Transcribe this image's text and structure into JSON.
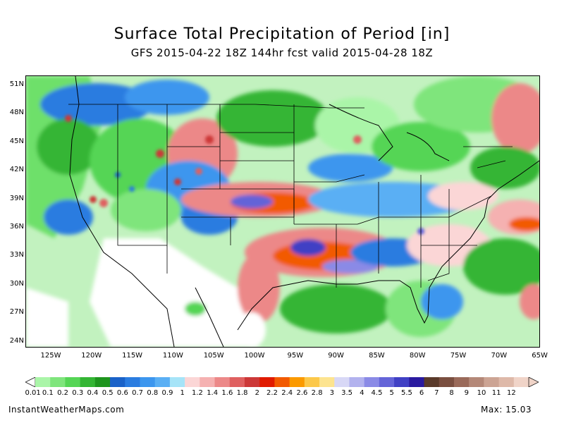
{
  "title": "Surface Total Precipitation of Period [in]",
  "subtitle": "GFS 2015-04-22 18Z 144hr fcst valid 2015-04-28 18Z",
  "map": {
    "lat_labels": [
      "51N",
      "48N",
      "45N",
      "42N",
      "39N",
      "36N",
      "33N",
      "30N",
      "27N",
      "24N"
    ],
    "lon_labels": [
      "125W",
      "120W",
      "115W",
      "110W",
      "105W",
      "100W",
      "95W",
      "90W",
      "85W",
      "80W",
      "75W",
      "70W",
      "65W"
    ],
    "lat_range": [
      23,
      52
    ],
    "lon_range": [
      -128,
      -65
    ]
  },
  "legend": {
    "labels": [
      "0.01",
      "0.1",
      "0.2",
      "0.3",
      "0.4",
      "0.5",
      "0.6",
      "0.7",
      "0.8",
      "0.9",
      "1",
      "1.2",
      "1.4",
      "1.6",
      "1.8",
      "2",
      "2.2",
      "2.4",
      "2.6",
      "2.8",
      "3",
      "3.5",
      "4",
      "4.5",
      "5",
      "5.5",
      "6",
      "7",
      "8",
      "9",
      "10",
      "11",
      "12"
    ],
    "colors": [
      "#aaf5a8",
      "#7fe57c",
      "#55d555",
      "#34b534",
      "#1e951e",
      "#1a62c8",
      "#2a7ce0",
      "#3c96ee",
      "#5aaff4",
      "#a6e4f8",
      "#fbd6d6",
      "#f5b1b1",
      "#ec8888",
      "#df6060",
      "#cc3838",
      "#e01a00",
      "#f25a00",
      "#fb9a00",
      "#fcc84a",
      "#fde490",
      "#d8d8f6",
      "#b2b2ee",
      "#8a8ae6",
      "#6464d8",
      "#4040c4",
      "#2a1aa0",
      "#5a3a2a",
      "#7a4f40",
      "#9a6a5a",
      "#b48878",
      "#cca494",
      "#deb9a9",
      "#f0d4c8"
    ]
  },
  "footer": {
    "source": "InstantWeatherMaps.com",
    "max": "Max: 15.03"
  }
}
